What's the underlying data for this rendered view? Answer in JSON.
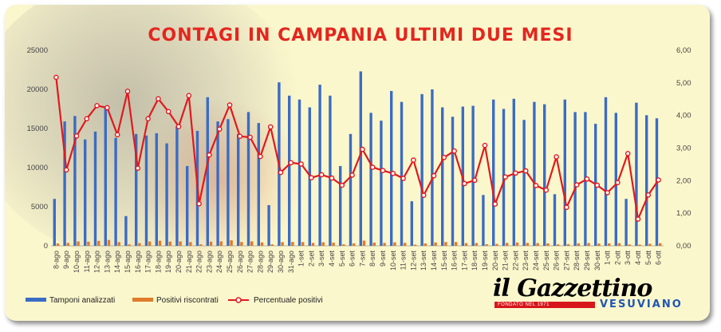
{
  "chart_data": {
    "type": "bar",
    "title": "CONTAGI IN CAMPANIA ULTIMI DUE MESI",
    "categories": [
      "8-ago",
      "9-ago",
      "10-ago",
      "11-ago",
      "12-ago",
      "13-ago",
      "14-ago",
      "15-ago",
      "16-ago",
      "17-ago",
      "18-ago",
      "19-ago",
      "20-ago",
      "21-ago",
      "22-ago",
      "23-ago",
      "24-ago",
      "25-ago",
      "26-ago",
      "27-ago",
      "28-ago",
      "29-ago",
      "30-ago",
      "31-ago",
      "1-set",
      "2-set",
      "3-set",
      "4-set",
      "5-set",
      "6-set",
      "7-set",
      "8-set",
      "9-set",
      "10-set",
      "11-set",
      "12-set",
      "13-set",
      "14-set",
      "15-set",
      "16-set",
      "17-set",
      "18-set",
      "19-set",
      "20-set",
      "21-set",
      "22-set",
      "23-set",
      "24-set",
      "25-set",
      "26-set",
      "27-set",
      "28-set",
      "29-set",
      "30-set",
      "1-ott",
      "2-ott",
      "3-ott",
      "4-ott",
      "5-ott",
      "6-ott"
    ],
    "series": [
      {
        "name": "Tamponi analizzati",
        "axis": "left",
        "kind": "bar",
        "color": "#3b6cc4",
        "values": [
          6000,
          15900,
          16600,
          13600,
          14600,
          17700,
          13800,
          3800,
          14300,
          14100,
          14400,
          13100,
          15300,
          10200,
          14700,
          19000,
          15900,
          16200,
          14300,
          17100,
          15700,
          5200,
          20900,
          19200,
          18700,
          17700,
          20600,
          19200,
          10200,
          14300,
          22300,
          17000,
          16000,
          19800,
          18400,
          5700,
          19400,
          20000,
          17700,
          16500,
          17800,
          17900,
          6500,
          18700,
          17500,
          18800,
          16100,
          18400,
          18100,
          6600,
          18700,
          17100,
          17100,
          15600,
          19000,
          17000,
          6000,
          18300,
          16700,
          16300
        ]
      },
      {
        "name": "Positivi riscontrati",
        "axis": "left",
        "kind": "bar",
        "color": "#e07b2b",
        "values": [
          310,
          370,
          560,
          530,
          630,
          750,
          470,
          180,
          340,
          550,
          650,
          540,
          560,
          470,
          190,
          530,
          570,
          700,
          480,
          570,
          430,
          190,
          470,
          490,
          470,
          370,
          450,
          400,
          190,
          310,
          660,
          410,
          370,
          440,
          380,
          150,
          300,
          430,
          480,
          480,
          340,
          360,
          200,
          240,
          370,
          420,
          370,
          340,
          310,
          180,
          220,
          320,
          350,
          290,
          310,
          330,
          170,
          150,
          260,
          330
        ]
      },
      {
        "name": "Percentuale positivi",
        "axis": "right",
        "kind": "line",
        "color": "#e0191e",
        "values": [
          5.17,
          2.33,
          3.37,
          3.9,
          4.3,
          4.24,
          3.41,
          4.74,
          2.38,
          3.9,
          4.51,
          4.12,
          3.66,
          4.61,
          1.29,
          2.79,
          3.58,
          4.32,
          3.36,
          3.33,
          2.74,
          3.65,
          2.25,
          2.55,
          2.51,
          2.09,
          2.18,
          2.08,
          1.86,
          2.17,
          2.96,
          2.41,
          2.31,
          2.22,
          2.07,
          2.63,
          1.55,
          2.15,
          2.71,
          2.91,
          1.91,
          2.01,
          3.08,
          1.28,
          2.11,
          2.23,
          2.3,
          1.85,
          1.71,
          2.73,
          1.18,
          1.87,
          2.05,
          1.86,
          1.63,
          1.94,
          2.83,
          0.82,
          1.56,
          2.02
        ]
      }
    ],
    "ylim_left": [
      0,
      25000
    ],
    "ylim_right": [
      0,
      6
    ],
    "yticks_left": [
      "0",
      "5000",
      "10000",
      "15000",
      "20000",
      "25000"
    ],
    "yticks_right": [
      "0,00",
      "1,00",
      "2,00",
      "3,00",
      "4,00",
      "5,00",
      "6,00"
    ],
    "grid": false,
    "legend": "bottom"
  },
  "legend": {
    "tamponi": "Tamponi analizzati",
    "positivi": "Positivi riscontrati",
    "percentuale": "Percentuale positivi"
  },
  "logo": {
    "name": "il Gazzettino",
    "tagline": "FONDATO NEL 1971",
    "sub": "VESUVIANO"
  }
}
